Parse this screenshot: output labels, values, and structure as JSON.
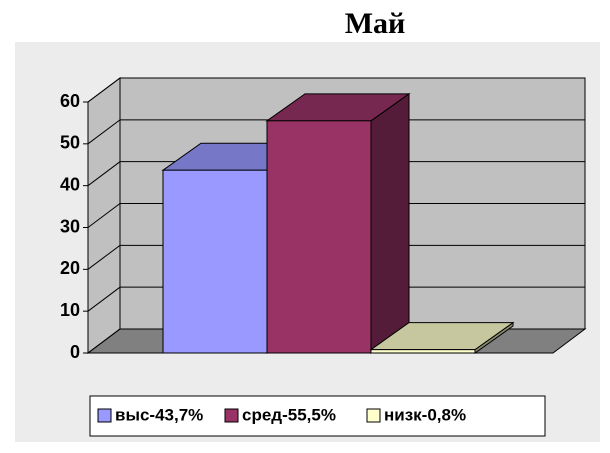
{
  "chart_data": {
    "type": "bar3d",
    "title": "Май",
    "categories": [
      null
    ],
    "series": [
      {
        "name": "выс-43,7%",
        "color": "#9999ff",
        "values": [
          43.7
        ]
      },
      {
        "name": "сред-55,5%",
        "color": "#993366",
        "values": [
          55.5
        ]
      },
      {
        "name": "низк-0,8%",
        "color": "#ffffcc",
        "values": [
          0.8
        ]
      }
    ],
    "ylim": [
      0,
      60
    ],
    "yticks": [
      0,
      10,
      20,
      30,
      40,
      50,
      60
    ],
    "grid": true,
    "legend": "bottom"
  }
}
